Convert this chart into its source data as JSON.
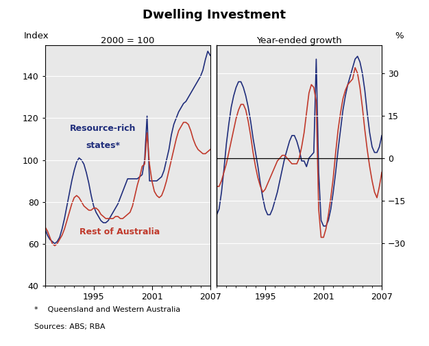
{
  "title": "Dwelling Investment",
  "left_label": "2000 = 100",
  "right_label": "Year-ended growth",
  "ylabel_left": "Index",
  "ylabel_right": "%",
  "footnote1": "*    Queensland and Western Australia",
  "footnote2": "Sources: ABS; RBA",
  "legend1_line1": "Resource-rich",
  "legend1_line2": "states*",
  "legend2": "Rest of Australia",
  "color_blue": "#1F2D7B",
  "color_red": "#C0392B",
  "background": "#E8E8E8",
  "left_ylim": [
    40,
    155
  ],
  "left_yticks": [
    40,
    60,
    80,
    100,
    120,
    140
  ],
  "right_ylim": [
    -45,
    40
  ],
  "right_yticks": [
    -30,
    -15,
    0,
    15,
    30
  ],
  "left_blue_x": [
    1990.0,
    1990.25,
    1990.5,
    1990.75,
    1991.0,
    1991.25,
    1991.5,
    1991.75,
    1992.0,
    1992.25,
    1992.5,
    1992.75,
    1993.0,
    1993.25,
    1993.5,
    1993.75,
    1994.0,
    1994.25,
    1994.5,
    1994.75,
    1995.0,
    1995.25,
    1995.5,
    1995.75,
    1996.0,
    1996.25,
    1996.5,
    1996.75,
    1997.0,
    1997.25,
    1997.5,
    1997.75,
    1998.0,
    1998.25,
    1998.5,
    1998.75,
    1999.0,
    1999.25,
    1999.5,
    1999.75,
    2000.0,
    2000.25,
    2000.5,
    2000.75,
    2001.0,
    2001.25,
    2001.5,
    2001.75,
    2002.0,
    2002.25,
    2002.5,
    2002.75,
    2003.0,
    2003.25,
    2003.5,
    2003.75,
    2004.0,
    2004.25,
    2004.5,
    2004.75,
    2005.0,
    2005.25,
    2005.5,
    2005.75,
    2006.0,
    2006.25,
    2006.5,
    2006.75,
    2007.0
  ],
  "left_blue_y": [
    67,
    64,
    62,
    61,
    60,
    61,
    63,
    67,
    72,
    78,
    84,
    90,
    95,
    99,
    101,
    100,
    98,
    94,
    89,
    83,
    78,
    75,
    73,
    71,
    70,
    70,
    71,
    73,
    75,
    77,
    79,
    82,
    85,
    88,
    91,
    91,
    91,
    91,
    91,
    92,
    93,
    100,
    121,
    90,
    90,
    90,
    90,
    91,
    92,
    95,
    100,
    105,
    112,
    117,
    120,
    123,
    125,
    127,
    128,
    130,
    132,
    134,
    136,
    138,
    140,
    143,
    148,
    152,
    150
  ],
  "left_red_x": [
    1990.0,
    1990.25,
    1990.5,
    1990.75,
    1991.0,
    1991.25,
    1991.5,
    1991.75,
    1992.0,
    1992.25,
    1992.5,
    1992.75,
    1993.0,
    1993.25,
    1993.5,
    1993.75,
    1994.0,
    1994.25,
    1994.5,
    1994.75,
    1995.0,
    1995.25,
    1995.5,
    1995.75,
    1996.0,
    1996.25,
    1996.5,
    1996.75,
    1997.0,
    1997.25,
    1997.5,
    1997.75,
    1998.0,
    1998.25,
    1998.5,
    1998.75,
    1999.0,
    1999.25,
    1999.5,
    1999.75,
    2000.0,
    2000.25,
    2000.5,
    2000.75,
    2001.0,
    2001.25,
    2001.5,
    2001.75,
    2002.0,
    2002.25,
    2002.5,
    2002.75,
    2003.0,
    2003.25,
    2003.5,
    2003.75,
    2004.0,
    2004.25,
    2004.5,
    2004.75,
    2005.0,
    2005.25,
    2005.5,
    2005.75,
    2006.0,
    2006.25,
    2006.5,
    2006.75,
    2007.0
  ],
  "left_red_y": [
    68,
    66,
    63,
    60,
    59,
    60,
    62,
    64,
    67,
    71,
    75,
    79,
    82,
    83,
    82,
    80,
    78,
    77,
    76,
    76,
    77,
    77,
    76,
    74,
    73,
    72,
    72,
    72,
    72,
    73,
    73,
    72,
    72,
    73,
    74,
    75,
    78,
    83,
    88,
    92,
    97,
    98,
    113,
    98,
    90,
    85,
    83,
    82,
    83,
    86,
    90,
    95,
    100,
    105,
    110,
    114,
    116,
    118,
    118,
    117,
    114,
    110,
    107,
    105,
    104,
    103,
    103,
    104,
    105
  ],
  "right_blue_x": [
    1990.0,
    1990.25,
    1990.5,
    1990.75,
    1991.0,
    1991.25,
    1991.5,
    1991.75,
    1992.0,
    1992.25,
    1992.5,
    1992.75,
    1993.0,
    1993.25,
    1993.5,
    1993.75,
    1994.0,
    1994.25,
    1994.5,
    1994.75,
    1995.0,
    1995.25,
    1995.5,
    1995.75,
    1996.0,
    1996.25,
    1996.5,
    1996.75,
    1997.0,
    1997.25,
    1997.5,
    1997.75,
    1998.0,
    1998.25,
    1998.5,
    1998.75,
    1999.0,
    1999.25,
    1999.5,
    1999.75,
    2000.0,
    2000.25,
    2000.5,
    2000.75,
    2001.0,
    2001.25,
    2001.5,
    2001.75,
    2002.0,
    2002.25,
    2002.5,
    2002.75,
    2003.0,
    2003.25,
    2003.5,
    2003.75,
    2004.0,
    2004.25,
    2004.5,
    2004.75,
    2005.0,
    2005.25,
    2005.5,
    2005.75,
    2006.0,
    2006.25,
    2006.5,
    2006.75,
    2007.0
  ],
  "right_blue_y": [
    -20,
    -18,
    -12,
    -4,
    5,
    12,
    18,
    22,
    25,
    27,
    27,
    25,
    22,
    18,
    13,
    7,
    2,
    -3,
    -9,
    -14,
    -18,
    -20,
    -20,
    -18,
    -15,
    -12,
    -8,
    -4,
    0,
    3,
    6,
    8,
    8,
    6,
    3,
    -1,
    -1,
    -3,
    0,
    1,
    2,
    35,
    -5,
    -22,
    -24,
    -24,
    -22,
    -18,
    -12,
    -5,
    3,
    10,
    17,
    22,
    26,
    29,
    32,
    35,
    36,
    34,
    30,
    24,
    16,
    9,
    4,
    2,
    2,
    4,
    8
  ],
  "right_red_x": [
    1990.0,
    1990.25,
    1990.5,
    1990.75,
    1991.0,
    1991.25,
    1991.5,
    1991.75,
    1992.0,
    1992.25,
    1992.5,
    1992.75,
    1993.0,
    1993.25,
    1993.5,
    1993.75,
    1994.0,
    1994.25,
    1994.5,
    1994.75,
    1995.0,
    1995.25,
    1995.5,
    1995.75,
    1996.0,
    1996.25,
    1996.5,
    1996.75,
    1997.0,
    1997.25,
    1997.5,
    1997.75,
    1998.0,
    1998.25,
    1998.5,
    1998.75,
    1999.0,
    1999.25,
    1999.5,
    1999.75,
    2000.0,
    2000.25,
    2000.5,
    2000.75,
    2001.0,
    2001.25,
    2001.5,
    2001.75,
    2002.0,
    2002.25,
    2002.5,
    2002.75,
    2003.0,
    2003.25,
    2003.5,
    2003.75,
    2004.0,
    2004.25,
    2004.5,
    2004.75,
    2005.0,
    2005.25,
    2005.5,
    2005.75,
    2006.0,
    2006.25,
    2006.5,
    2006.75,
    2007.0
  ],
  "right_red_y": [
    -10,
    -10,
    -8,
    -5,
    -2,
    2,
    6,
    10,
    14,
    17,
    19,
    19,
    17,
    13,
    8,
    2,
    -3,
    -7,
    -10,
    -12,
    -11,
    -9,
    -7,
    -5,
    -3,
    -1,
    0,
    1,
    1,
    0,
    -1,
    -2,
    -2,
    -2,
    0,
    4,
    9,
    16,
    23,
    26,
    25,
    20,
    -18,
    -28,
    -28,
    -25,
    -20,
    -14,
    -7,
    2,
    10,
    16,
    21,
    24,
    26,
    27,
    28,
    32,
    30,
    25,
    18,
    10,
    3,
    -3,
    -8,
    -12,
    -14,
    -10,
    -5
  ]
}
